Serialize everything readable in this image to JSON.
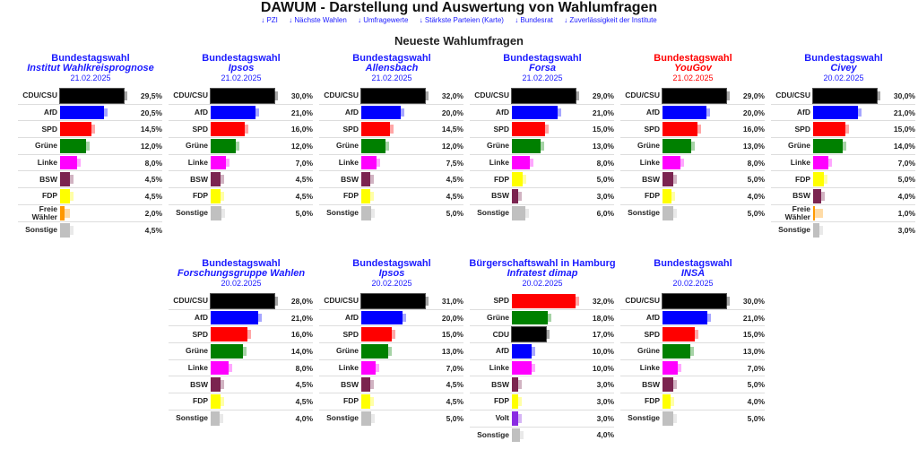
{
  "header": {
    "title": "DAWUM - Darstellung und Auswertung von Wahlumfragen",
    "nav": [
      "↓ PZI",
      "↓ Nächste Wahlen",
      "↓ Umfragewerte",
      "↓ Stärkste Parteien (Karte)",
      "↓ Bundesrat",
      "↓ Zuverlässigkeit der Institute"
    ],
    "section_title": "Neueste Wahlumfragen"
  },
  "colors": {
    "CDU/CSU": "#000000",
    "CDU": "#000000",
    "AfD": "#0000ff",
    "SPD": "#ff0000",
    "Grüne": "#008000",
    "Linke": "#ff00ff",
    "BSW": "#7b2450",
    "FDP": "#ffff00",
    "Freie Wähler": "#ff9900",
    "Volt": "#8a2be2",
    "Sonstige": "#c0c0c0",
    "title_blue": "#1a1aff",
    "title_red": "#ff0000"
  },
  "panels": [
    {
      "title": "Bundestagswahl",
      "institute": "Institut Wahlkreisprognose",
      "date": "21.02.2025",
      "accent": "blue",
      "rows": [
        [
          "CDU/CSU",
          "29,5%"
        ],
        [
          "AfD",
          "20,5%"
        ],
        [
          "SPD",
          "14,5%"
        ],
        [
          "Grüne",
          "12,0%"
        ],
        [
          "Linke",
          "8,0%"
        ],
        [
          "BSW",
          "4,5%"
        ],
        [
          "FDP",
          "4,5%"
        ],
        [
          "Freie Wähler",
          "2,0%"
        ],
        [
          "Sonstige",
          "4,5%"
        ]
      ]
    },
    {
      "title": "Bundestagswahl",
      "institute": "Ipsos",
      "date": "21.02.2025",
      "accent": "blue",
      "rows": [
        [
          "CDU/CSU",
          "30,0%"
        ],
        [
          "AfD",
          "21,0%"
        ],
        [
          "SPD",
          "16,0%"
        ],
        [
          "Grüne",
          "12,0%"
        ],
        [
          "Linke",
          "7,0%"
        ],
        [
          "BSW",
          "4,5%"
        ],
        [
          "FDP",
          "4,5%"
        ],
        [
          "Sonstige",
          "5,0%"
        ]
      ]
    },
    {
      "title": "Bundestagswahl",
      "institute": "Allensbach",
      "date": "21.02.2025",
      "accent": "blue",
      "rows": [
        [
          "CDU/CSU",
          "32,0%"
        ],
        [
          "AfD",
          "20,0%"
        ],
        [
          "SPD",
          "14,5%"
        ],
        [
          "Grüne",
          "12,0%"
        ],
        [
          "Linke",
          "7,5%"
        ],
        [
          "BSW",
          "4,5%"
        ],
        [
          "FDP",
          "4,5%"
        ],
        [
          "Sonstige",
          "5,0%"
        ]
      ]
    },
    {
      "title": "Bundestagswahl",
      "institute": "Forsa",
      "date": "21.02.2025",
      "accent": "blue",
      "rows": [
        [
          "CDU/CSU",
          "29,0%"
        ],
        [
          "AfD",
          "21,0%"
        ],
        [
          "SPD",
          "15,0%"
        ],
        [
          "Grüne",
          "13,0%"
        ],
        [
          "Linke",
          "8,0%"
        ],
        [
          "FDP",
          "5,0%"
        ],
        [
          "BSW",
          "3,0%"
        ],
        [
          "Sonstige",
          "6,0%"
        ]
      ]
    },
    {
      "title": "Bundestagswahl",
      "institute": "YouGov",
      "date": "21.02.2025",
      "accent": "red",
      "rows": [
        [
          "CDU/CSU",
          "29,0%"
        ],
        [
          "AfD",
          "20,0%"
        ],
        [
          "SPD",
          "16,0%"
        ],
        [
          "Grüne",
          "13,0%"
        ],
        [
          "Linke",
          "8,0%"
        ],
        [
          "BSW",
          "5,0%"
        ],
        [
          "FDP",
          "4,0%"
        ],
        [
          "Sonstige",
          "5,0%"
        ]
      ]
    },
    {
      "title": "Bundestagswahl",
      "institute": "Civey",
      "date": "20.02.2025",
      "accent": "blue",
      "rows": [
        [
          "CDU/CSU",
          "30,0%"
        ],
        [
          "AfD",
          "21,0%"
        ],
        [
          "SPD",
          "15,0%"
        ],
        [
          "Grüne",
          "14,0%"
        ],
        [
          "Linke",
          "7,0%"
        ],
        [
          "FDP",
          "5,0%"
        ],
        [
          "BSW",
          "4,0%"
        ],
        [
          "Freie Wähler",
          "1,0%"
        ],
        [
          "Sonstige",
          "3,0%"
        ]
      ]
    },
    {
      "title": "Bundestagswahl",
      "institute": "Forschungsgruppe Wahlen",
      "date": "20.02.2025",
      "accent": "blue",
      "rows": [
        [
          "CDU/CSU",
          "28,0%"
        ],
        [
          "AfD",
          "21,0%"
        ],
        [
          "SPD",
          "16,0%"
        ],
        [
          "Grüne",
          "14,0%"
        ],
        [
          "Linke",
          "8,0%"
        ],
        [
          "BSW",
          "4,5%"
        ],
        [
          "FDP",
          "4,5%"
        ],
        [
          "Sonstige",
          "4,0%"
        ]
      ]
    },
    {
      "title": "Bundestagswahl",
      "institute": "Ipsos",
      "date": "20.02.2025",
      "accent": "blue",
      "rows": [
        [
          "CDU/CSU",
          "31,0%"
        ],
        [
          "AfD",
          "20,0%"
        ],
        [
          "SPD",
          "15,0%"
        ],
        [
          "Grüne",
          "13,0%"
        ],
        [
          "Linke",
          "7,0%"
        ],
        [
          "BSW",
          "4,5%"
        ],
        [
          "FDP",
          "4,5%"
        ],
        [
          "Sonstige",
          "5,0%"
        ]
      ]
    },
    {
      "title": "Bürgerschaftswahl in Hamburg",
      "institute": "Infratest dimap",
      "date": "20.02.2025",
      "accent": "blue",
      "rows": [
        [
          "SPD",
          "32,0%"
        ],
        [
          "Grüne",
          "18,0%"
        ],
        [
          "CDU",
          "17,0%"
        ],
        [
          "AfD",
          "10,0%"
        ],
        [
          "Linke",
          "10,0%"
        ],
        [
          "BSW",
          "3,0%"
        ],
        [
          "FDP",
          "3,0%"
        ],
        [
          "Volt",
          "3,0%"
        ],
        [
          "Sonstige",
          "4,0%"
        ]
      ]
    },
    {
      "title": "Bundestagswahl",
      "institute": "INSA",
      "date": "20.02.2025",
      "accent": "blue",
      "rows": [
        [
          "CDU/CSU",
          "30,0%"
        ],
        [
          "AfD",
          "21,0%"
        ],
        [
          "SPD",
          "15,0%"
        ],
        [
          "Grüne",
          "13,0%"
        ],
        [
          "Linke",
          "7,0%"
        ],
        [
          "BSW",
          "5,0%"
        ],
        [
          "FDP",
          "4,0%"
        ],
        [
          "Sonstige",
          "5,0%"
        ]
      ]
    }
  ]
}
